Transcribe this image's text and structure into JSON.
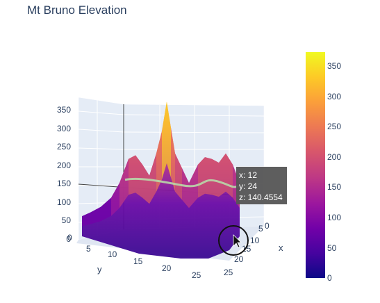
{
  "chart_data": {
    "type": "surface",
    "title": "Mt Bruno Elevation",
    "axes": {
      "x": {
        "title": "x",
        "ticks": [
          "0",
          "5",
          "10",
          "15",
          "20",
          "25"
        ]
      },
      "y": {
        "title": "y",
        "ticks": [
          "0",
          "5",
          "10",
          "15",
          "20",
          "25"
        ]
      },
      "z": {
        "title": "",
        "ticks": [
          "0",
          "50",
          "100",
          "150",
          "200",
          "250",
          "300",
          "350"
        ]
      }
    },
    "colorbar": {
      "ticks": [
        "0",
        "50",
        "100",
        "150",
        "200",
        "250",
        "300",
        "350"
      ],
      "range": [
        0,
        370
      ],
      "colors": [
        "#0d0887",
        "#46039f",
        "#7201a8",
        "#9c179e",
        "#bd3786",
        "#d8576b",
        "#ed7953",
        "#fb9f3a",
        "#fdca26",
        "#f0f921"
      ]
    },
    "contour_level": 140,
    "hover": {
      "x_line": "x: 12",
      "y_line": "y: 24",
      "z_line": "z: 140.4554"
    },
    "peak": {
      "value": 370
    }
  }
}
